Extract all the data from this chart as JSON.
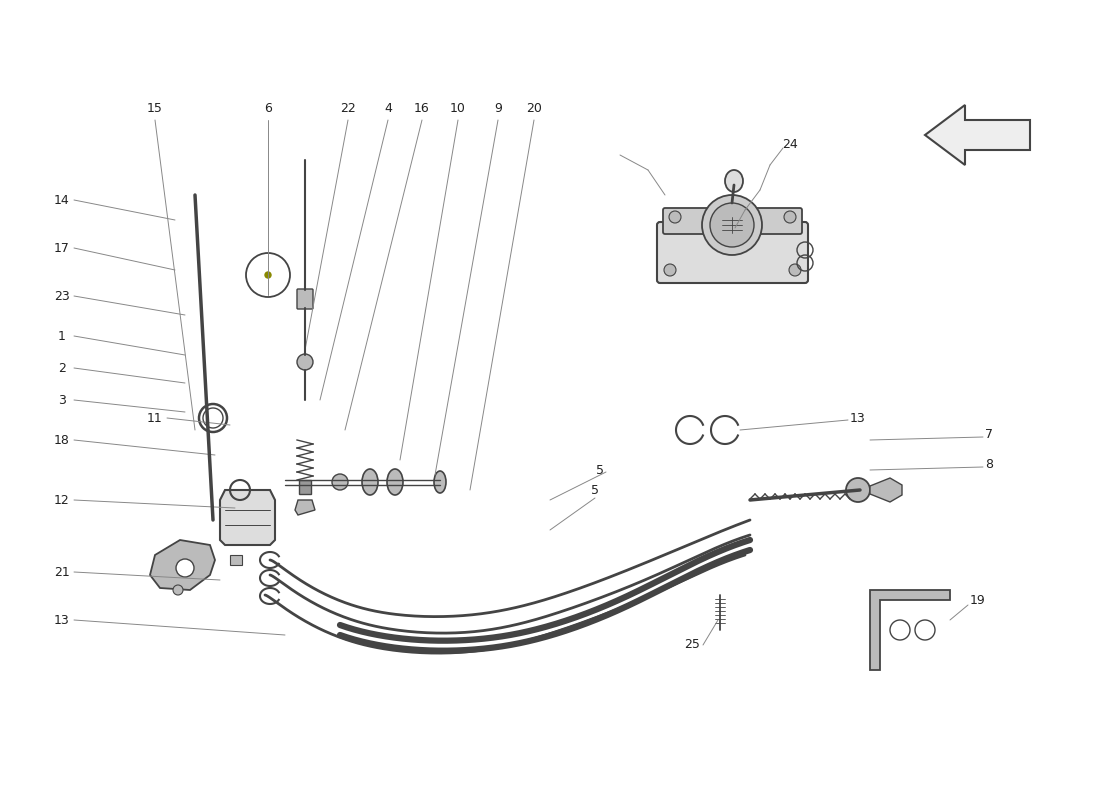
{
  "bg_color": "#ffffff",
  "line_color": "#444444",
  "gray": "#888888",
  "dgray": "#444444",
  "lgray": "#bbbbbb",
  "mgray": "#999999",
  "label_color": "#222222"
}
